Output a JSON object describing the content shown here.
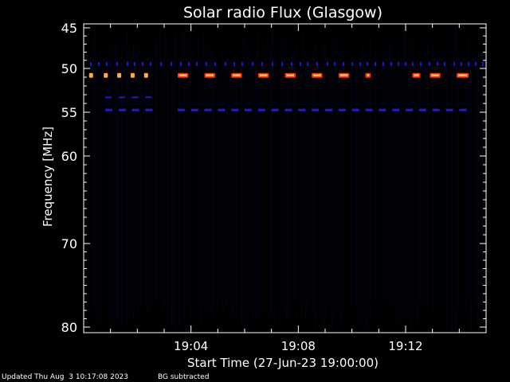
{
  "chart_data": {
    "type": "heatmap",
    "title": "Solar radio Flux (Glasgow)",
    "xlabel": "Start Time (27-Jun-23 19:00:00)",
    "ylabel": "Frequency [MHz]",
    "x_unit": "minutes after 19:00",
    "xlim": [
      0,
      15
    ],
    "ylim": [
      80,
      45
    ],
    "y_ticks": [
      {
        "value": 45,
        "label": "45"
      },
      {
        "value": 50,
        "label": "50"
      },
      {
        "value": 55,
        "label": "55"
      },
      {
        "value": 60,
        "label": "60"
      },
      {
        "value": 70,
        "label": "70"
      },
      {
        "value": 80,
        "label": "80"
      }
    ],
    "x_ticks": [
      {
        "value": 4,
        "label": "19:04"
      },
      {
        "value": 8,
        "label": "19:08"
      },
      {
        "value": 12,
        "label": "19:12"
      }
    ],
    "colors": {
      "background": "#000000",
      "low": "#0a0a3a",
      "mid": "#1e1ee8",
      "hot": "#ff3300",
      "peak": "#ffaa44"
    },
    "features": {
      "bursts_50_8MHz": [
        {
          "start": 0.2,
          "end": 0.35,
          "freq": 50.8,
          "intensity": "medium"
        },
        {
          "start": 0.75,
          "end": 0.9,
          "freq": 50.8,
          "intensity": "medium"
        },
        {
          "start": 1.25,
          "end": 1.4,
          "freq": 50.8,
          "intensity": "medium"
        },
        {
          "start": 1.75,
          "end": 1.9,
          "freq": 50.8,
          "intensity": "medium"
        },
        {
          "start": 2.25,
          "end": 2.4,
          "freq": 50.8,
          "intensity": "medium"
        },
        {
          "start": 3.5,
          "end": 3.9,
          "freq": 50.8,
          "intensity": "high"
        },
        {
          "start": 4.5,
          "end": 4.9,
          "freq": 50.8,
          "intensity": "high"
        },
        {
          "start": 5.5,
          "end": 5.9,
          "freq": 50.8,
          "intensity": "high"
        },
        {
          "start": 6.5,
          "end": 6.9,
          "freq": 50.8,
          "intensity": "high"
        },
        {
          "start": 7.5,
          "end": 7.9,
          "freq": 50.8,
          "intensity": "high"
        },
        {
          "start": 8.5,
          "end": 8.9,
          "freq": 50.8,
          "intensity": "high"
        },
        {
          "start": 9.5,
          "end": 9.9,
          "freq": 50.8,
          "intensity": "high"
        },
        {
          "start": 10.5,
          "end": 10.7,
          "freq": 50.8,
          "intensity": "high"
        },
        {
          "start": 12.25,
          "end": 12.55,
          "freq": 50.8,
          "intensity": "high"
        },
        {
          "start": 12.9,
          "end": 13.3,
          "freq": 50.8,
          "intensity": "high"
        },
        {
          "start": 13.9,
          "end": 14.35,
          "freq": 50.8,
          "intensity": "high"
        }
      ],
      "emission_55MHz": [
        {
          "start": 0.8,
          "end": 2.4,
          "freq": 54.7
        },
        {
          "start": 3.5,
          "end": 14.5,
          "freq": 54.7
        }
      ],
      "emission_53MHz": [
        {
          "start": 0.8,
          "end": 2.4,
          "freq": 53.3
        }
      ],
      "band_49_5MHz": [
        {
          "start": 0.0,
          "end": 15.0,
          "freq": 49.5
        }
      ]
    }
  },
  "footer": {
    "updated": "Updated Thu Aug  3 10:17:08 2023",
    "bg_note": "BG subtracted"
  }
}
